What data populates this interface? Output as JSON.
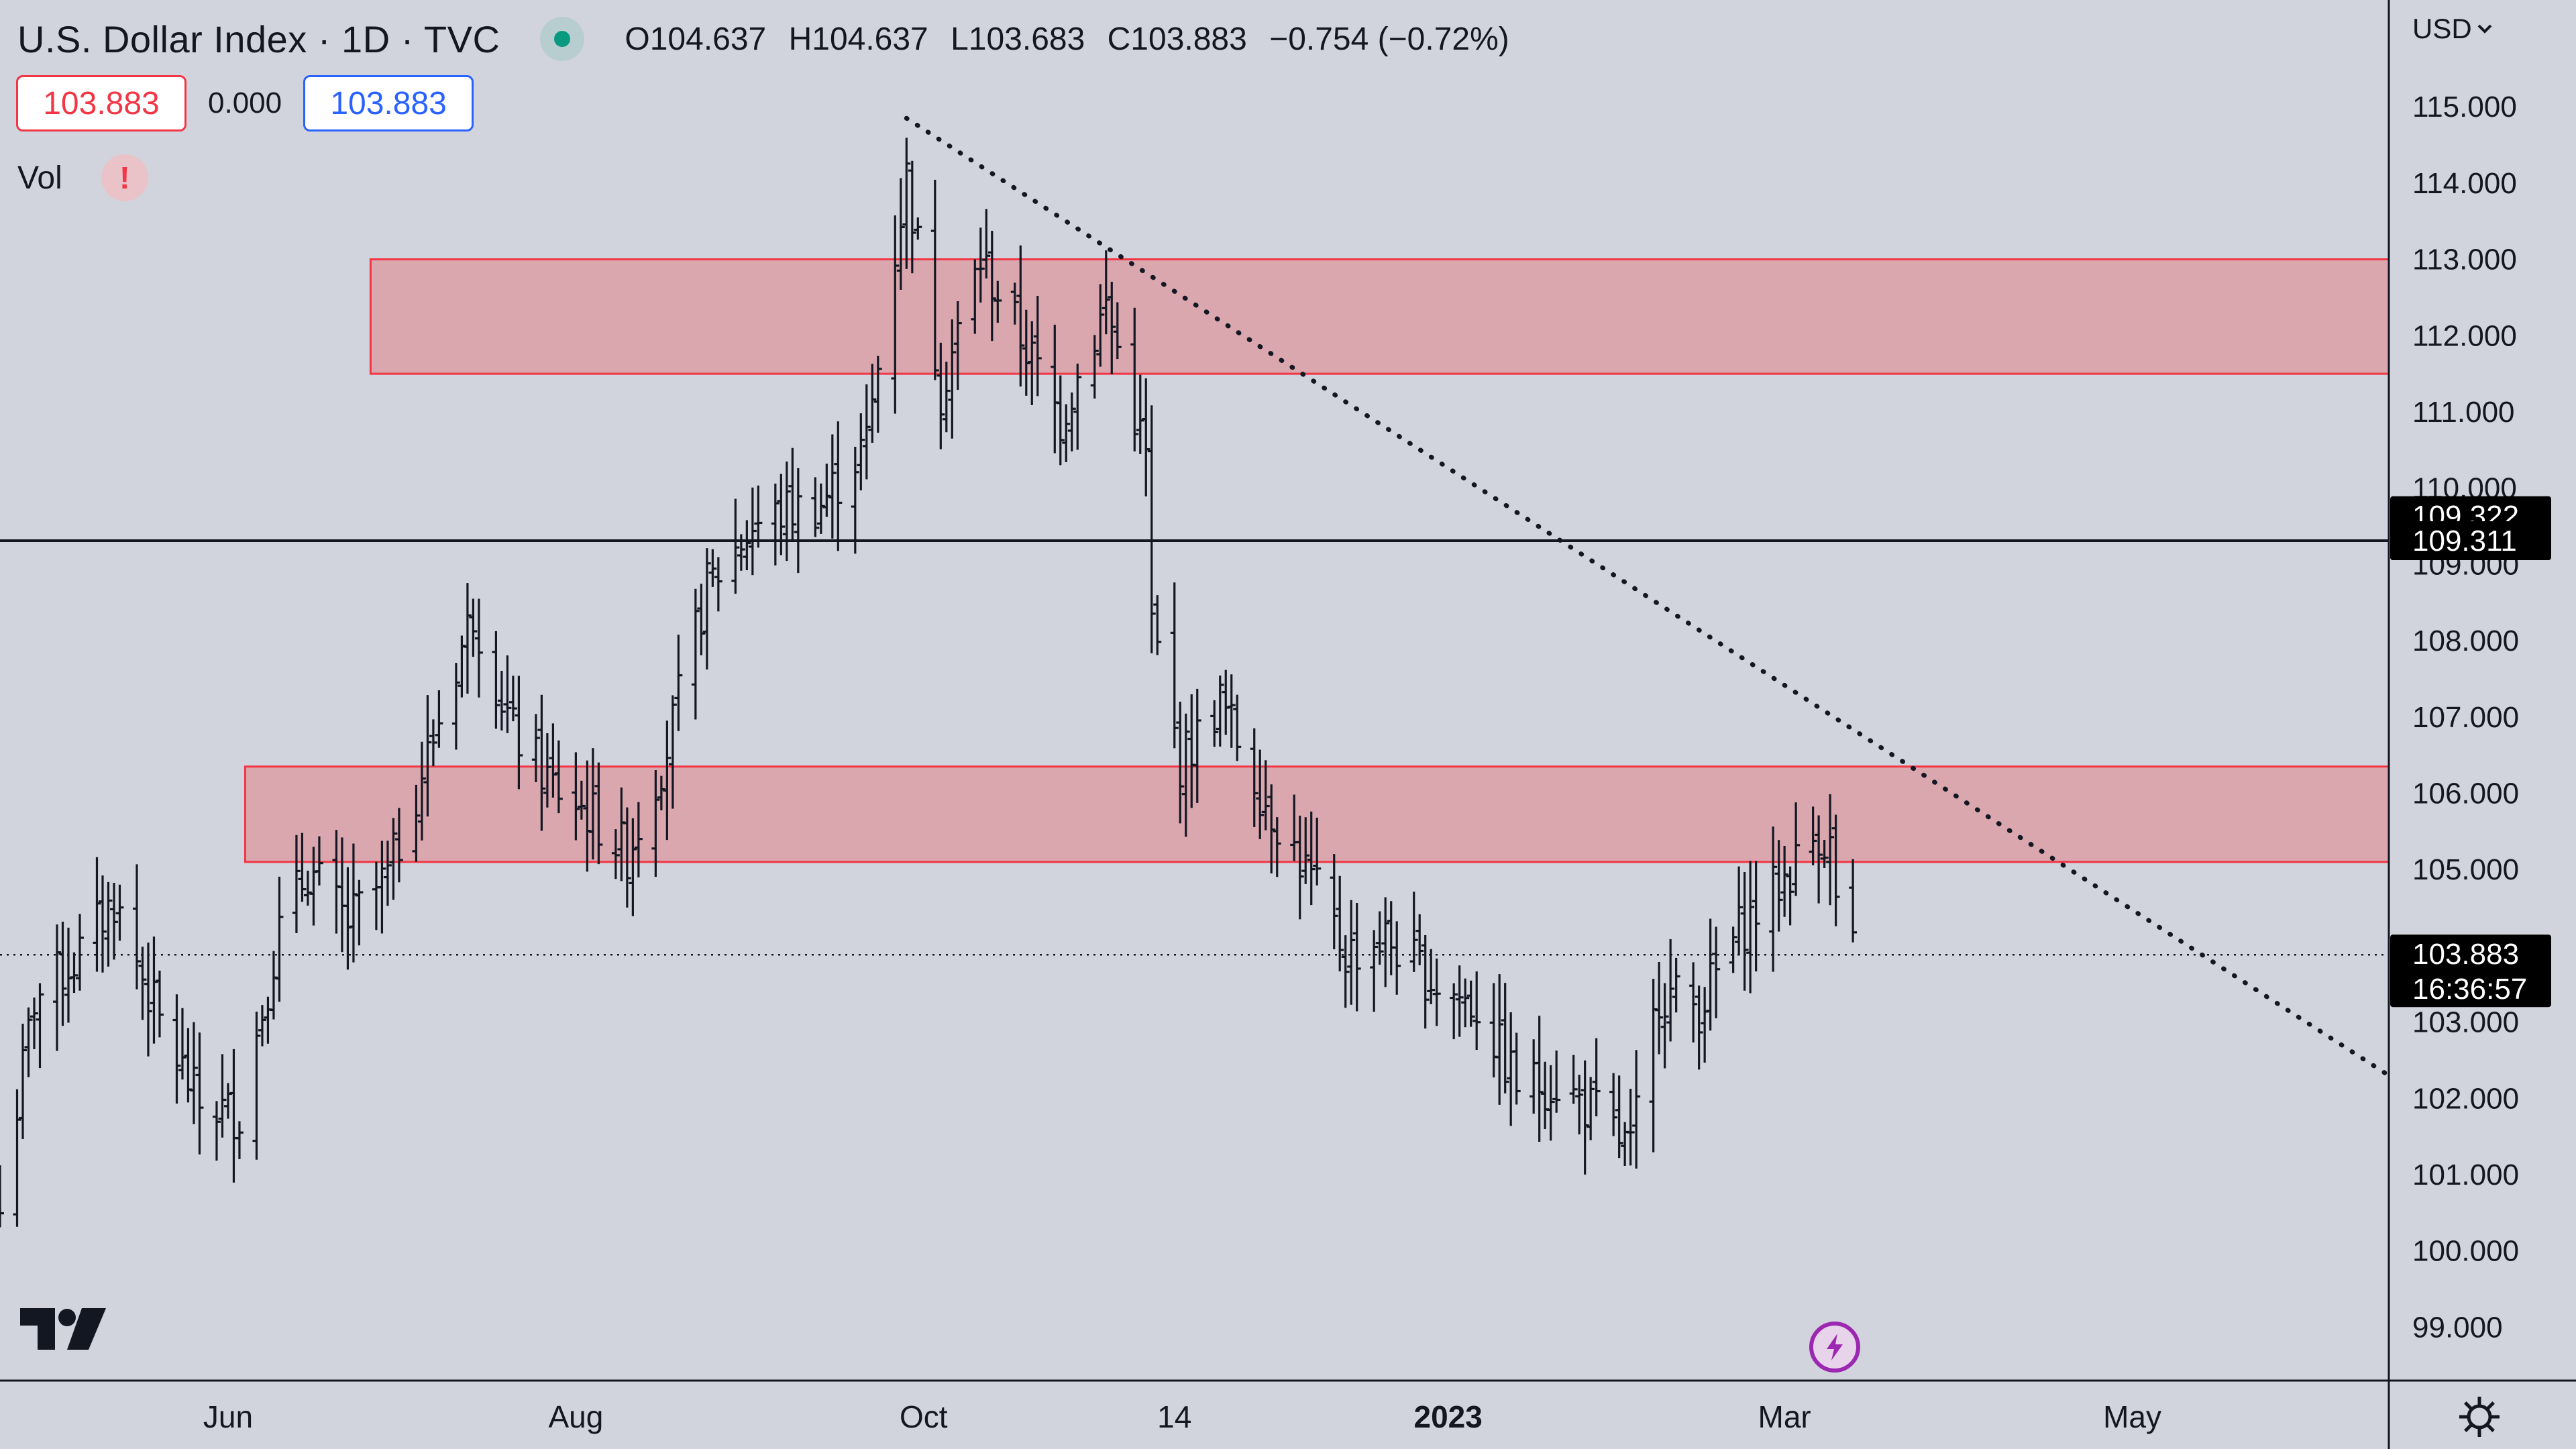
{
  "header": {
    "title": "U.S. Dollar Index · 1D · TVC",
    "open": "O104.637",
    "high": "H104.637",
    "low": "L103.683",
    "close": "C103.883",
    "change": "−0.754 (−0.72%)"
  },
  "quote": {
    "bid": "103.883",
    "spread": "0.000",
    "ask": "103.883"
  },
  "indicator": {
    "label": "Vol",
    "warning": "!"
  },
  "currency": "USD",
  "colors": {
    "background": "#d1d4dc",
    "zone_fill": "#dba7af",
    "zone_border": "#f23645",
    "bid": "#f23645",
    "ask": "#2962ff",
    "bars": "#131722"
  },
  "chart_data": {
    "type": "bar",
    "title": "U.S. Dollar Index · 1D · TVC",
    "ylim": [
      98.3,
      116.4
    ],
    "xlim": [
      "2022-04-22",
      "2023-06-15"
    ],
    "y_ticks": [
      99,
      100,
      101,
      102,
      103,
      104,
      105,
      106,
      107,
      108,
      109,
      110,
      111,
      112,
      113,
      114,
      115
    ],
    "y_tick_labels": [
      "99.000",
      "100.000",
      "101.000",
      "102.000",
      "103.000",
      "",
      "105.000",
      "106.000",
      "107.000",
      "108.000",
      "109.000",
      "110.000",
      "111.000",
      "112.000",
      "113.000",
      "114.000",
      "115.000"
    ],
    "x_ticks": [
      {
        "date": "2022-06-01",
        "label": "Jun",
        "bold": false
      },
      {
        "date": "2022-08-01",
        "label": "Aug",
        "bold": false
      },
      {
        "date": "2022-10-01",
        "label": "Oct",
        "bold": false
      },
      {
        "date": "2022-11-14",
        "label": "14",
        "bold": false
      },
      {
        "date": "2023-01-01",
        "label": "2023",
        "bold": true
      },
      {
        "date": "2023-03-01",
        "label": "Mar",
        "bold": false
      },
      {
        "date": "2023-05-01",
        "label": "May",
        "bold": false
      }
    ],
    "series": [
      {
        "anchors": [
          [
            "2022-04-22",
            100.5
          ],
          [
            "2022-04-28",
            103.3
          ],
          [
            "2022-05-05",
            103.8
          ],
          [
            "2022-05-12",
            104.6
          ],
          [
            "2022-05-20",
            103.0
          ],
          [
            "2022-05-27",
            101.9
          ],
          [
            "2022-06-03",
            101.8
          ],
          [
            "2022-06-10",
            104.2
          ],
          [
            "2022-06-15",
            105.0
          ],
          [
            "2022-06-22",
            104.3
          ],
          [
            "2022-06-29",
            104.9
          ],
          [
            "2022-07-06",
            106.5
          ],
          [
            "2022-07-14",
            108.4
          ],
          [
            "2022-07-21",
            106.8
          ],
          [
            "2022-07-28",
            106.1
          ],
          [
            "2022-08-04",
            105.7
          ],
          [
            "2022-08-10",
            105.2
          ],
          [
            "2022-08-17",
            106.6
          ],
          [
            "2022-08-24",
            108.7
          ],
          [
            "2022-09-01",
            109.5
          ],
          [
            "2022-09-07",
            109.7
          ],
          [
            "2022-09-13",
            109.8
          ],
          [
            "2022-09-21",
            110.6
          ],
          [
            "2022-09-28",
            114.1
          ],
          [
            "2022-10-04",
            111.3
          ],
          [
            "2022-10-11",
            113.0
          ],
          [
            "2022-10-18",
            112.0
          ],
          [
            "2022-10-25",
            110.9
          ],
          [
            "2022-11-02",
            112.4
          ],
          [
            "2022-11-09",
            110.4
          ],
          [
            "2022-11-10",
            108.2
          ],
          [
            "2022-11-15",
            106.4
          ],
          [
            "2022-11-22",
            107.2
          ],
          [
            "2022-11-30",
            105.9
          ],
          [
            "2022-12-07",
            105.0
          ],
          [
            "2022-12-14",
            103.9
          ],
          [
            "2022-12-21",
            104.1
          ],
          [
            "2022-12-30",
            103.5
          ],
          [
            "2023-01-06",
            103.2
          ],
          [
            "2023-01-13",
            102.2
          ],
          [
            "2023-01-20",
            102.2
          ],
          [
            "2023-01-27",
            101.8
          ],
          [
            "2023-02-02",
            101.3
          ],
          [
            "2023-02-07",
            103.4
          ],
          [
            "2023-02-14",
            103.2
          ],
          [
            "2023-02-21",
            104.2
          ],
          [
            "2023-02-28",
            104.8
          ],
          [
            "2023-03-07",
            105.5
          ],
          [
            "2023-03-09",
            105.3
          ],
          [
            "2023-03-10",
            104.6
          ],
          [
            "2023-03-13",
            103.9
          ]
        ]
      }
    ],
    "levels": [
      {
        "value": 109.311,
        "style": "solid",
        "label": "109.311"
      },
      {
        "value": 103.883,
        "style": "dotted",
        "label": "103.883"
      }
    ],
    "zones": [
      {
        "from": "2022-06-26",
        "y_low": 111.5,
        "y_high": 113.0
      },
      {
        "from": "2022-06-04",
        "y_low": 105.1,
        "y_high": 106.35
      }
    ],
    "trendline": {
      "start": [
        "2022-09-28",
        114.85
      ],
      "end": [
        "2023-06-15",
        102.3
      ]
    },
    "price_labels": [
      {
        "value": 109.322,
        "text": "109.322"
      },
      {
        "value": 109.311,
        "text": "109.311"
      },
      {
        "value": 103.883,
        "text": "103.883",
        "sub": "16:36:57"
      }
    ]
  }
}
